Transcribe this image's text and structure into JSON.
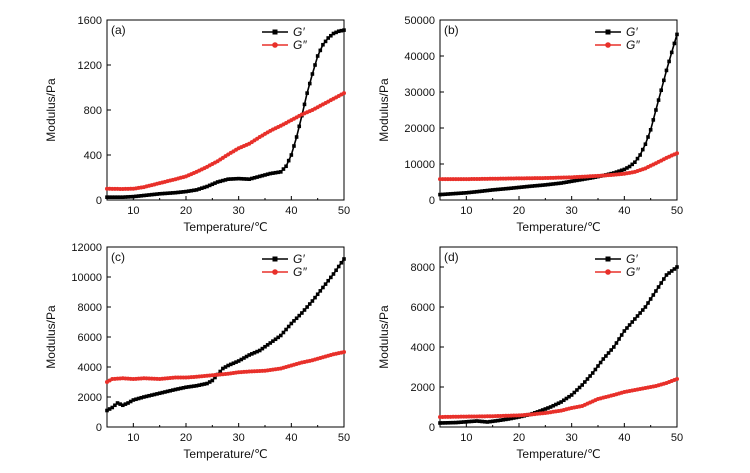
{
  "chart_data": [
    {
      "type": "line",
      "panel_label": "(a)",
      "xlabel": "Temperature/℃",
      "ylabel": "Modulus/Pa",
      "xlim": [
        5,
        50
      ],
      "ylim": [
        0,
        1600
      ],
      "xticks": [
        10,
        20,
        30,
        40,
        50
      ],
      "yticks": [
        0,
        400,
        800,
        1200,
        1600
      ],
      "legend_position": "top-right",
      "series": [
        {
          "name": "G′",
          "color": "#000000",
          "marker": "square",
          "x": [
            5,
            8,
            10,
            12,
            15,
            18,
            20,
            22,
            24,
            26,
            28,
            30,
            32,
            34,
            36,
            38,
            39,
            40,
            41,
            42,
            43,
            44,
            45,
            46,
            47,
            48,
            49,
            50
          ],
          "y": [
            25,
            25,
            30,
            40,
            55,
            65,
            75,
            90,
            120,
            160,
            185,
            190,
            185,
            210,
            235,
            250,
            300,
            400,
            560,
            750,
            950,
            1120,
            1280,
            1380,
            1440,
            1480,
            1500,
            1510
          ]
        },
        {
          "name": "G″",
          "color": "#e8302a",
          "marker": "circle",
          "x": [
            5,
            8,
            10,
            12,
            15,
            18,
            20,
            22,
            24,
            26,
            28,
            30,
            32,
            34,
            36,
            38,
            40,
            42,
            44,
            46,
            48,
            50
          ],
          "y": [
            100,
            98,
            100,
            115,
            150,
            185,
            210,
            250,
            295,
            345,
            405,
            460,
            500,
            560,
            615,
            660,
            710,
            760,
            800,
            850,
            900,
            950
          ]
        }
      ]
    },
    {
      "type": "line",
      "panel_label": "(b)",
      "xlabel": "Temperature/℃",
      "ylabel": "Modulus/Pa",
      "xlim": [
        5,
        50
      ],
      "ylim": [
        0,
        50000
      ],
      "xticks": [
        10,
        20,
        30,
        40,
        50
      ],
      "yticks": [
        0,
        10000,
        20000,
        30000,
        40000,
        50000
      ],
      "legend_position": "top-right",
      "series": [
        {
          "name": "G′",
          "color": "#000000",
          "marker": "square",
          "x": [
            5,
            8,
            10,
            12,
            15,
            18,
            20,
            22,
            25,
            28,
            30,
            32,
            34,
            36,
            38,
            40,
            41,
            42,
            43,
            44,
            45,
            46,
            47,
            48,
            49,
            50
          ],
          "y": [
            1500,
            1800,
            2000,
            2300,
            2800,
            3200,
            3500,
            3800,
            4200,
            4700,
            5200,
            5700,
            6200,
            6800,
            7500,
            8500,
            9300,
            10500,
            12500,
            15500,
            19500,
            25000,
            30500,
            36000,
            41000,
            46000
          ]
        },
        {
          "name": "G″",
          "color": "#e8302a",
          "marker": "circle",
          "x": [
            5,
            10,
            15,
            20,
            25,
            30,
            35,
            38,
            40,
            42,
            44,
            46,
            48,
            50
          ],
          "y": [
            5800,
            5800,
            5900,
            6000,
            6100,
            6300,
            6700,
            7000,
            7300,
            7800,
            8800,
            10200,
            11700,
            13000
          ]
        }
      ]
    },
    {
      "type": "line",
      "panel_label": "(c)",
      "xlabel": "Temperature/℃",
      "ylabel": "Modulus/Pa",
      "xlim": [
        5,
        50
      ],
      "ylim": [
        0,
        12000
      ],
      "xticks": [
        10,
        20,
        30,
        40,
        50
      ],
      "yticks": [
        0,
        2000,
        4000,
        6000,
        8000,
        10000,
        12000
      ],
      "legend_position": "top-right",
      "series": [
        {
          "name": "G′",
          "color": "#000000",
          "marker": "square",
          "x": [
            5,
            6,
            7,
            8,
            9,
            10,
            12,
            15,
            18,
            20,
            22,
            24,
            25,
            26,
            27,
            28,
            30,
            32,
            34,
            36,
            38,
            40,
            42,
            44,
            46,
            48,
            50
          ],
          "y": [
            1100,
            1300,
            1600,
            1450,
            1600,
            1800,
            2000,
            2250,
            2500,
            2650,
            2750,
            2900,
            3100,
            3500,
            3900,
            4100,
            4400,
            4800,
            5100,
            5600,
            6100,
            6900,
            7600,
            8400,
            9300,
            10200,
            11200
          ]
        },
        {
          "name": "G″",
          "color": "#e8302a",
          "marker": "circle",
          "x": [
            5,
            6,
            8,
            10,
            12,
            15,
            18,
            20,
            22,
            25,
            28,
            30,
            32,
            35,
            38,
            40,
            42,
            44,
            46,
            48,
            50
          ],
          "y": [
            3000,
            3200,
            3250,
            3200,
            3250,
            3200,
            3300,
            3300,
            3350,
            3450,
            3550,
            3650,
            3700,
            3750,
            3900,
            4100,
            4300,
            4450,
            4650,
            4850,
            5000
          ]
        }
      ]
    },
    {
      "type": "line",
      "panel_label": "(d)",
      "xlabel": "Temperature/℃",
      "ylabel": "Modulus/Pa",
      "xlim": [
        5,
        50
      ],
      "ylim": [
        0,
        9000
      ],
      "xticks": [
        10,
        20,
        30,
        40,
        50
      ],
      "yticks": [
        0,
        2000,
        4000,
        6000,
        8000
      ],
      "legend_position": "top-right",
      "series": [
        {
          "name": "G′",
          "color": "#000000",
          "marker": "square",
          "x": [
            5,
            8,
            10,
            12,
            14,
            16,
            18,
            20,
            22,
            24,
            26,
            28,
            30,
            32,
            34,
            36,
            38,
            40,
            42,
            44,
            46,
            48,
            50
          ],
          "y": [
            200,
            220,
            260,
            300,
            250,
            320,
            400,
            500,
            620,
            800,
            1000,
            1250,
            1600,
            2100,
            2700,
            3400,
            4000,
            4800,
            5400,
            6000,
            6800,
            7600,
            8000
          ]
        },
        {
          "name": "G″",
          "color": "#e8302a",
          "marker": "circle",
          "x": [
            5,
            10,
            15,
            20,
            22,
            25,
            28,
            30,
            32,
            35,
            38,
            40,
            42,
            44,
            46,
            48,
            50
          ],
          "y": [
            500,
            520,
            540,
            580,
            620,
            700,
            820,
            950,
            1050,
            1400,
            1600,
            1750,
            1850,
            1950,
            2050,
            2200,
            2400
          ]
        }
      ]
    }
  ]
}
